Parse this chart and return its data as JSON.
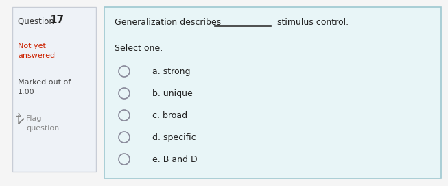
{
  "question_number": "17",
  "question_label": "Question ",
  "status_label": "Not yet\nanswered",
  "marked_label": "Marked out of\n1.00",
  "flag_label": "Flag\nquestion",
  "options": [
    "a. strong",
    "b. unique",
    "c. broad",
    "d. specific",
    "e. B and D"
  ],
  "select_one_label": "Select one:",
  "left_panel_bg": "#eef2f7",
  "left_panel_border": "#c8cdd6",
  "right_panel_bg": "#e8f5f7",
  "right_panel_border": "#9ec8d0",
  "outer_bg": "#f5f5f5",
  "question_num_color": "#222222",
  "question_label_color": "#333333",
  "status_color": "#cc2200",
  "marked_color": "#444444",
  "flag_color": "#888888",
  "question_text_color": "#222222",
  "select_one_color": "#222222",
  "option_text_color": "#222222",
  "radio_edge_color": "#888899",
  "radio_fill_color": "#e8f5f7",
  "underline_color": "#333333"
}
